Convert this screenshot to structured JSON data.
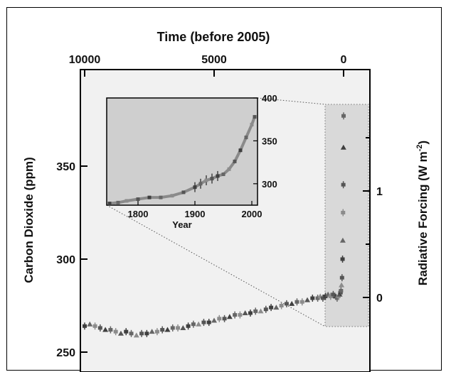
{
  "chart_data": [
    {
      "type": "scatter",
      "top_axis": {
        "label": "Time (before 2005)",
        "ticks": [
          10000,
          5000,
          0
        ],
        "range": [
          10000,
          0
        ]
      },
      "left_axis": {
        "label": "Carbon Dioxide (ppm)",
        "ticks": [
          250,
          300,
          350
        ],
        "range": [
          243,
          390
        ]
      },
      "right_axis": {
        "label_main": "Radiative Forcing (W m",
        "label_sup": "-2",
        "label_close": ")",
        "ticks": [
          0,
          1
        ]
      },
      "series": [
        {
          "x": [
            10000,
            9800,
            9600,
            9400,
            9200,
            9000,
            8800,
            8600,
            8400,
            8200,
            8000,
            7800,
            7600,
            7400,
            7200,
            7000,
            6800,
            6600,
            6400,
            6200,
            6000,
            5800,
            5600,
            5400,
            5200,
            5000,
            4800,
            4600,
            4400,
            4200,
            4000,
            3800,
            3600,
            3400,
            3200,
            3000,
            2800,
            2600,
            2400,
            2200,
            2000,
            1800,
            1600,
            1400,
            1200,
            1000,
            900,
            800,
            700,
            600,
            500,
            400,
            300,
            250,
            200,
            150,
            120,
            100,
            80,
            60,
            40,
            30,
            20,
            10,
            5,
            0
          ],
          "y": [
            264,
            265,
            264,
            263,
            262,
            262,
            261,
            260,
            261,
            260,
            259,
            260,
            260,
            261,
            261,
            262,
            262,
            263,
            263,
            263,
            264,
            265,
            265,
            266,
            266,
            267,
            268,
            268,
            269,
            270,
            270,
            271,
            271,
            272,
            272,
            273,
            274,
            274,
            275,
            276,
            276,
            277,
            277,
            278,
            279,
            279,
            280,
            279,
            280,
            281,
            280,
            281,
            280,
            279,
            280,
            281,
            282,
            283,
            286,
            290,
            300,
            310,
            325,
            340,
            360,
            377
          ]
        }
      ]
    },
    {
      "type": "scatter",
      "xlabel": "Year",
      "x_ticks": [
        1800,
        1900,
        2000
      ],
      "xlim": [
        1745,
        2010
      ],
      "y_ticks": [
        300,
        350,
        400
      ],
      "ylim": [
        275,
        400
      ],
      "series": [
        {
          "x": [
            1750,
            1765,
            1780,
            1800,
            1820,
            1840,
            1860,
            1880,
            1900,
            1910,
            1920,
            1930,
            1940,
            1950,
            1960,
            1970,
            1980,
            1990,
            2000,
            2005
          ],
          "y": [
            277,
            278,
            280,
            282,
            284,
            284,
            286,
            290,
            296,
            300,
            304,
            306,
            309,
            311,
            317,
            326,
            339,
            354,
            369,
            378
          ]
        }
      ]
    }
  ]
}
